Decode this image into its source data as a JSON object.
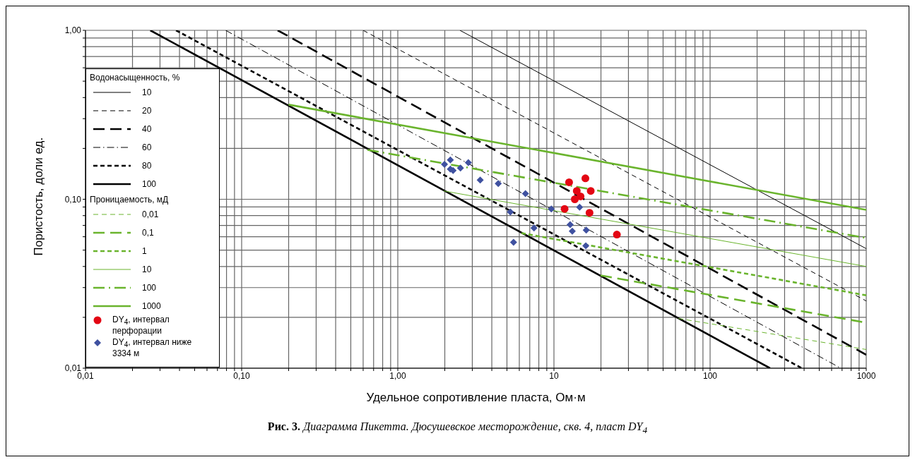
{
  "chart_data": {
    "type": "line",
    "title": "Рис. 3. Диаграмма Пикетта. Дюсушевское месторождение, скв. 4, пласт DY$_{4}$",
    "xlabel": "Удельное сопротивление пласта, Ом·м",
    "ylabel": "Пористость, доли ед.",
    "legend_title": [
      "Водонасыщенность, %",
      "Проницаемость, мД"
    ],
    "log": "xy",
    "grid": true,
    "legend": "left",
    "xlim": [
      0.01,
      1000
    ],
    "ylim": [
      0.01,
      1
    ],
    "xticks": [
      {
        "value": 0.01,
        "label": "0,01"
      },
      {
        "value": 0.02,
        "label": null
      },
      {
        "value": 0.03,
        "label": null
      },
      {
        "value": 0.04,
        "label": null
      },
      {
        "value": 0.05,
        "label": null
      },
      {
        "value": 0.06,
        "label": null
      },
      {
        "value": 0.07,
        "label": null
      },
      {
        "value": 0.08,
        "label": null
      },
      {
        "value": 0.09,
        "label": null
      },
      {
        "value": 0.1,
        "label": "0,10"
      },
      {
        "value": 0.2,
        "label": null
      },
      {
        "value": 0.3,
        "label": null
      },
      {
        "value": 0.4,
        "label": null
      },
      {
        "value": 0.5,
        "label": null
      },
      {
        "value": 0.6,
        "label": null
      },
      {
        "value": 0.7,
        "label": null
      },
      {
        "value": 0.8,
        "label": null
      },
      {
        "value": 0.9,
        "label": null
      },
      {
        "value": 1,
        "label": "1,00"
      },
      {
        "value": 2,
        "label": null
      },
      {
        "value": 3,
        "label": null
      },
      {
        "value": 4,
        "label": null
      },
      {
        "value": 5,
        "label": null
      },
      {
        "value": 6,
        "label": null
      },
      {
        "value": 7,
        "label": null
      },
      {
        "value": 8,
        "label": null
      },
      {
        "value": 9,
        "label": null
      },
      10,
      {
        "value": 20,
        "label": null
      },
      {
        "value": 30,
        "label": null
      },
      {
        "value": 40,
        "label": null
      },
      {
        "value": 50,
        "label": null
      },
      {
        "value": 60,
        "label": null
      },
      {
        "value": 70,
        "label": null
      },
      {
        "value": 80,
        "label": null
      },
      {
        "value": 90,
        "label": null
      },
      100,
      {
        "value": 200,
        "label": null
      },
      {
        "value": 300,
        "label": null
      },
      {
        "value": 400,
        "label": null
      },
      {
        "value": 500,
        "label": null
      },
      {
        "value": 600,
        "label": null
      },
      {
        "value": 700,
        "label": null
      },
      {
        "value": 800,
        "label": null
      },
      {
        "value": 900,
        "label": null
      },
      1000
    ],
    "yticks": [
      {
        "value": 0.01,
        "label": "0,01"
      },
      {
        "value": 0.02,
        "label": null
      },
      {
        "value": 0.03,
        "label": null
      },
      {
        "value": 0.04,
        "label": null
      },
      {
        "value": 0.05,
        "label": null
      },
      {
        "value": 0.06,
        "label": null
      },
      {
        "value": 0.07,
        "label": null
      },
      {
        "value": 0.08,
        "label": null
      },
      {
        "value": 0.09,
        "label": null
      },
      {
        "value": 0.1,
        "label": "0,10"
      },
      {
        "value": 0.2,
        "label": null
      },
      {
        "value": 0.3,
        "label": null
      },
      {
        "value": 0.4,
        "label": null
      },
      {
        "value": 0.5,
        "label": null
      },
      {
        "value": 0.6,
        "label": null
      },
      {
        "value": 0.7,
        "label": null
      },
      {
        "value": 0.8,
        "label": null
      },
      {
        "value": 0.9,
        "label": null
      },
      {
        "value": 1,
        "label": "1,00"
      }
    ],
    "series": [
      {
        "name": "10",
        "color": "#000000",
        "line_style": "solid",
        "x": [
          2.5,
          1000
        ],
        "values": [
          1,
          0.051
        ]
      },
      {
        "name": "20",
        "color": "#000000",
        "line_style": "dashed",
        "x": [
          0.6,
          1000
        ],
        "values": [
          1,
          0.025
        ]
      },
      {
        "name": "40",
        "color": "#000000",
        "line_style": "dashed",
        "x": [
          0.17,
          1000
        ],
        "values": [
          1,
          0.012
        ]
      },
      {
        "name": "60",
        "color": "#000000",
        "line_style": "dashdot",
        "x": [
          0.079,
          687
        ],
        "values": [
          1,
          0.01
        ]
      },
      {
        "name": "80",
        "color": "#000000",
        "line_style": "dotted",
        "x": [
          0.038,
          387
        ],
        "values": [
          1,
          0.01
        ]
      },
      {
        "name": "100",
        "color": "#000000",
        "line_style": "solid",
        "x": [
          0.026,
          242
        ],
        "values": [
          1,
          0.01
        ]
      },
      {
        "name": "0,01",
        "color": "#6ab42d",
        "line_style": "dashed",
        "x": [
          62.6,
          1000
        ],
        "values": [
          0.0197,
          0.0129
        ]
      },
      {
        "name": "0,1",
        "color": "#6ab42d",
        "line_style": "dashed",
        "x": [
          19.9,
          1000
        ],
        "values": [
          0.0354,
          0.0186
        ]
      },
      {
        "name": "1",
        "color": "#6ab42d",
        "line_style": "dotted",
        "x": [
          6.2,
          1000
        ],
        "values": [
          0.063,
          0.027
        ]
      },
      {
        "name": "10",
        "color": "#6ab42d",
        "line_style": "solid",
        "x": [
          1.97,
          1000
        ],
        "values": [
          0.112,
          0.04
        ]
      },
      {
        "name": "100",
        "color": "#6ab42d",
        "line_style": "dashdot",
        "x": [
          0.64,
          1000
        ],
        "values": [
          0.196,
          0.059
        ]
      },
      {
        "name": "1000",
        "color": "#6ab42d",
        "line_style": "solid",
        "x": [
          0.2,
          1000
        ],
        "values": [
          0.363,
          0.0865
        ]
      },
      {
        "name": "DY$_{4}$, интервал перфорации",
        "type": "scatter",
        "marker": "circle",
        "color": "#e30613",
        "x": [
          12.5,
          15.9,
          14.0,
          17.2,
          14.8,
          13.6,
          11.7,
          16.9,
          25.3
        ],
        "values": [
          0.126,
          0.133,
          0.112,
          0.112,
          0.104,
          0.1,
          0.0877,
          0.0832,
          0.0618
        ]
      },
      {
        "name": "DY$_{4}$, интервал ниже 3334 м",
        "type": "scatter",
        "marker": "diamond",
        "color": "#3f51a0",
        "x": [
          1.99,
          2.17,
          2.17,
          2.26,
          2.52,
          2.83,
          3.37,
          4.4,
          6.57,
          9.62,
          14.6,
          5.26,
          12.7,
          13.1,
          16.1,
          7.45,
          5.51,
          16.0
        ],
        "values": [
          0.161,
          0.171,
          0.151,
          0.148,
          0.153,
          0.165,
          0.13,
          0.124,
          0.108,
          0.0877,
          0.0897,
          0.0841,
          0.0707,
          0.0647,
          0.0657,
          0.0676,
          0.0556,
          0.053
        ]
      }
    ]
  }
}
